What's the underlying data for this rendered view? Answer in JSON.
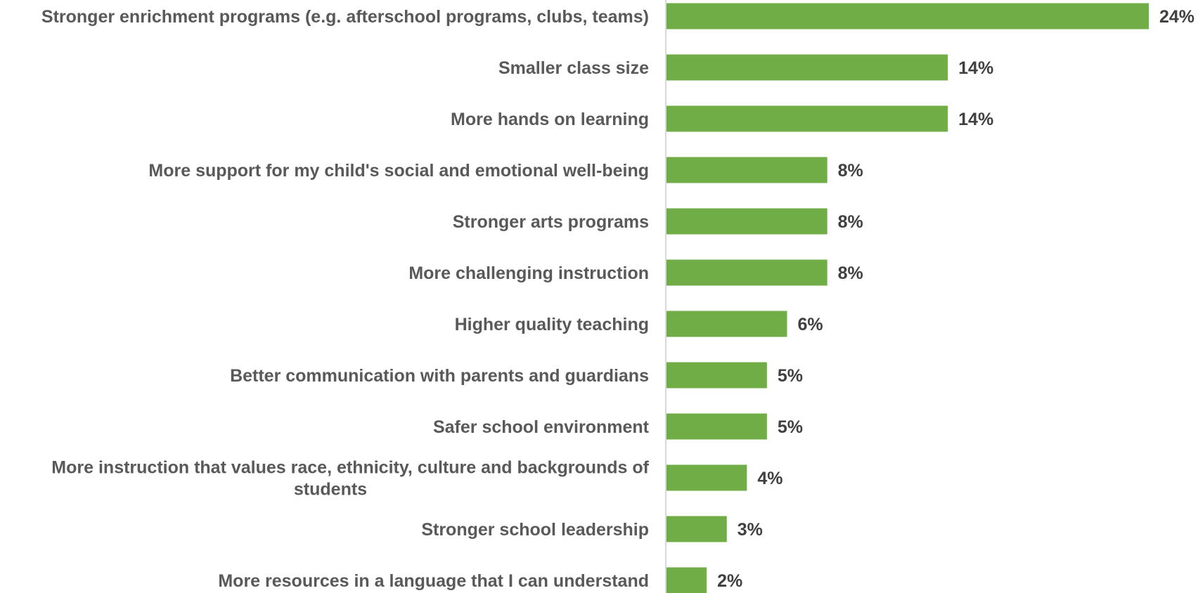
{
  "chart_data": {
    "type": "bar",
    "orientation": "horizontal",
    "categories": [
      [
        "Stronger enrichment programs (e.g. afterschool programs, clubs, teams)"
      ],
      [
        "Smaller class size"
      ],
      [
        "More hands on learning"
      ],
      [
        "More support for my child's social and emotional well-being"
      ],
      [
        "Stronger arts programs"
      ],
      [
        "More challenging instruction"
      ],
      [
        "Higher quality teaching"
      ],
      [
        "Better communication with parents and guardians"
      ],
      [
        "Safer school environment"
      ],
      [
        "More instruction that values race, ethnicity, culture and backgrounds of",
        "students"
      ],
      [
        "Stronger school leadership"
      ],
      [
        "More resources in a language that I can understand"
      ]
    ],
    "values": [
      24,
      14,
      14,
      8,
      8,
      8,
      6,
      5,
      5,
      4,
      3,
      2
    ],
    "value_labels": [
      "24%",
      "14%",
      "14%",
      "8%",
      "8%",
      "8%",
      "6%",
      "5%",
      "5%",
      "4%",
      "3%",
      "2%"
    ],
    "bar_color": "#70AD47",
    "axis_color": "#D9D9D9",
    "title": "",
    "xlabel": "",
    "ylabel": "",
    "grid": false,
    "legend": "none"
  }
}
